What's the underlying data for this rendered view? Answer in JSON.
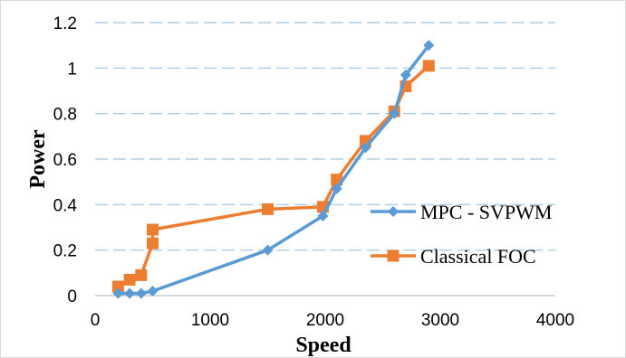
{
  "chart_data": {
    "type": "line",
    "title": "",
    "xlabel": "Speed",
    "ylabel": "Power",
    "xlim": [
      0,
      4000
    ],
    "ylim": [
      0,
      1.2
    ],
    "x_ticks": [
      "0",
      "1000",
      "2000",
      "3000",
      "4000"
    ],
    "y_ticks": [
      "0",
      "0.2",
      "0.4",
      "0.6",
      "0.8",
      "1",
      "1.2"
    ],
    "grid": "horizontal dashed",
    "legend_position": "right",
    "series": [
      {
        "name": "MPC - SVPWM",
        "color": "#5b9bd5",
        "marker": "diamond",
        "points": [
          {
            "x": 200,
            "y": 0.01
          },
          {
            "x": 300,
            "y": 0.01
          },
          {
            "x": 400,
            "y": 0.01
          },
          {
            "x": 500,
            "y": 0.02
          },
          {
            "x": 1500,
            "y": 0.2
          },
          {
            "x": 1980,
            "y": 0.35
          },
          {
            "x": 2100,
            "y": 0.47
          },
          {
            "x": 2350,
            "y": 0.65
          },
          {
            "x": 2600,
            "y": 0.8
          },
          {
            "x": 2700,
            "y": 0.97
          },
          {
            "x": 2900,
            "y": 1.1
          }
        ]
      },
      {
        "name": "Classical FOC",
        "color": "#ed7d31",
        "marker": "square",
        "points": [
          {
            "x": 200,
            "y": 0.04
          },
          {
            "x": 300,
            "y": 0.07
          },
          {
            "x": 400,
            "y": 0.09
          },
          {
            "x": 500,
            "y": 0.23
          },
          {
            "x": 500,
            "y": 0.29
          },
          {
            "x": 1500,
            "y": 0.38
          },
          {
            "x": 1980,
            "y": 0.39
          },
          {
            "x": 2100,
            "y": 0.51
          },
          {
            "x": 2350,
            "y": 0.68
          },
          {
            "x": 2600,
            "y": 0.81
          },
          {
            "x": 2700,
            "y": 0.92
          },
          {
            "x": 2900,
            "y": 1.01
          }
        ]
      }
    ]
  }
}
